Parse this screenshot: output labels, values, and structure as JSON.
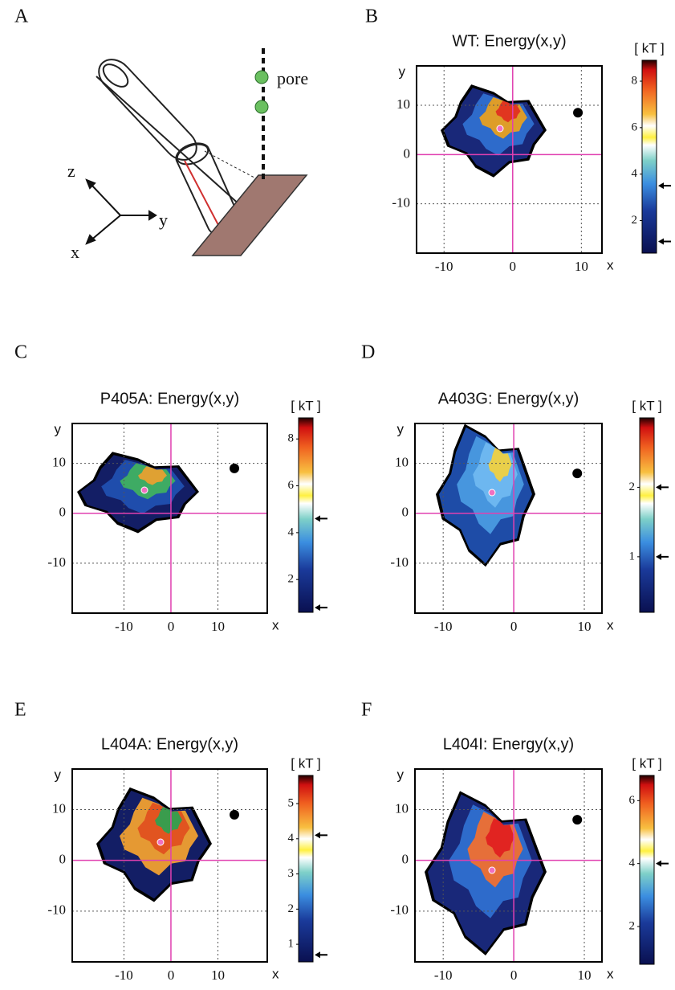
{
  "panel_A": {
    "label": "A",
    "z": "z",
    "y": "y",
    "x": "x",
    "pore": "pore"
  },
  "chart_data": [
    {
      "type": "heatmap",
      "panel": "B",
      "title": "WT: Energy(x,y)",
      "xlabel": "x",
      "ylabel": "y",
      "xlim": [
        -14,
        13
      ],
      "ylim": [
        -20,
        18
      ],
      "xticks": [
        -10,
        0,
        10
      ],
      "yticks": [
        10,
        0,
        -10
      ],
      "grid": true,
      "colorbar_label": "[ kT ]",
      "clim": [
        0.6,
        8.9
      ],
      "cticks": [
        2,
        4,
        6,
        8
      ],
      "arrows": [
        3.5,
        1.1
      ],
      "pore_marker": {
        "x": 9.5,
        "y": 8.5
      }
    },
    {
      "type": "heatmap",
      "panel": "C",
      "title": "P405A: Energy(x,y)",
      "xlabel": "x",
      "ylabel": "y",
      "xlim": [
        -21,
        20.5
      ],
      "ylim": [
        -20,
        18
      ],
      "xticks": [
        -10,
        0,
        10
      ],
      "yticks": [
        10,
        0,
        -10
      ],
      "grid": true,
      "colorbar_label": "[ kT ]",
      "clim": [
        0.6,
        8.9
      ],
      "cticks": [
        2,
        4,
        6,
        8
      ],
      "arrows": [
        4.6,
        0.8
      ],
      "pore_marker": {
        "x": 13.5,
        "y": 9
      }
    },
    {
      "type": "heatmap",
      "panel": "D",
      "title": "A403G: Energy(x,y)",
      "xlabel": "x",
      "ylabel": "y",
      "xlim": [
        -14,
        12.5
      ],
      "ylim": [
        -20,
        18
      ],
      "xticks": [
        -10,
        0,
        10
      ],
      "yticks": [
        10,
        0,
        -10
      ],
      "grid": true,
      "colorbar_label": "[ kT ]",
      "clim": [
        0.2,
        3
      ],
      "cticks": [
        1,
        2
      ],
      "arrows": [
        2,
        1
      ],
      "pore_marker": {
        "x": 9,
        "y": 8
      }
    },
    {
      "type": "heatmap",
      "panel": "E",
      "title": "L404A: Energy(x,y)",
      "xlabel": "x",
      "ylabel": "y",
      "xlim": [
        -21,
        20.5
      ],
      "ylim": [
        -20,
        18
      ],
      "xticks": [
        -10,
        0,
        10
      ],
      "yticks": [
        10,
        0,
        -10
      ],
      "grid": true,
      "colorbar_label": "[ kT ]",
      "clim": [
        0.5,
        5.8
      ],
      "cticks": [
        1,
        2,
        3,
        4,
        5
      ],
      "arrows": [
        4.1,
        0.7
      ],
      "pore_marker": {
        "x": 13.5,
        "y": 9
      }
    },
    {
      "type": "heatmap",
      "panel": "F",
      "title": "L404I: Energy(x,y)",
      "xlabel": "x",
      "ylabel": "y",
      "xlim": [
        -14,
        12.5
      ],
      "ylim": [
        -20,
        18
      ],
      "xticks": [
        -10,
        0,
        10
      ],
      "yticks": [
        10,
        0,
        -10
      ],
      "grid": true,
      "colorbar_label": "[ kT ]",
      "clim": [
        0.8,
        6.8
      ],
      "cticks": [
        2,
        4,
        6
      ],
      "arrows": [
        4
      ],
      "pore_marker": {
        "x": 9,
        "y": 8
      }
    }
  ]
}
